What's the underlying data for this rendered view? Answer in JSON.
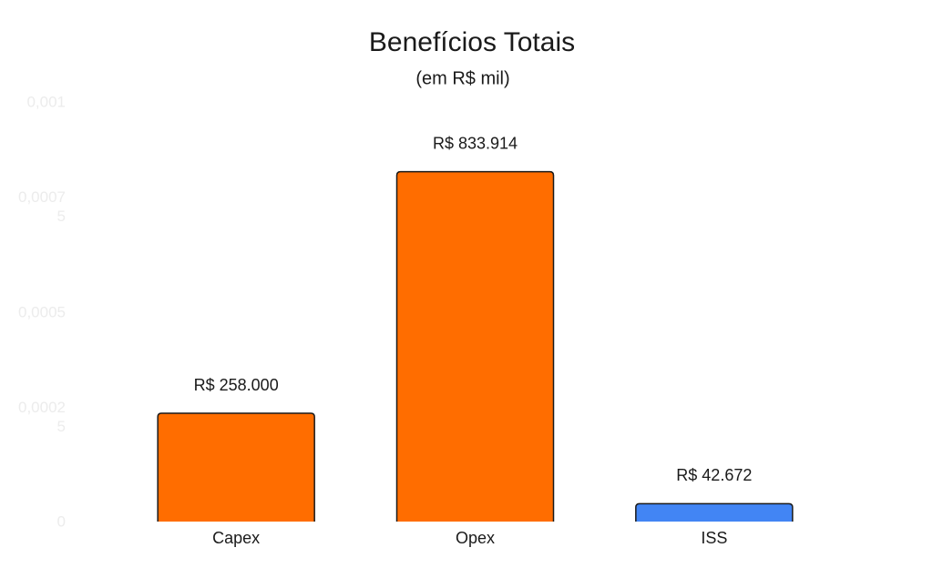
{
  "chart_data": {
    "type": "bar",
    "title": "Benefícios Totais",
    "subtitle": "(em R$ mil)",
    "categories": [
      "Capex",
      "Opex",
      "ISS"
    ],
    "values": [
      258000,
      833914,
      42672
    ],
    "value_labels": [
      "R$  258.000",
      "R$  833.914",
      "R$  42.672"
    ],
    "colors": [
      "#ff6d00",
      "#ff6d00",
      "#4285f4"
    ],
    "ylim": [
      0,
      1000000
    ],
    "yticks": [
      0,
      {
        "value": 250000,
        "label": "0,00025"
      },
      {
        "value": 500000,
        "label": "0,0005"
      },
      {
        "value": 750000,
        "label": "0,00075"
      },
      {
        "value": 1000000,
        "label": "0,001"
      }
    ],
    "grid": false
  }
}
